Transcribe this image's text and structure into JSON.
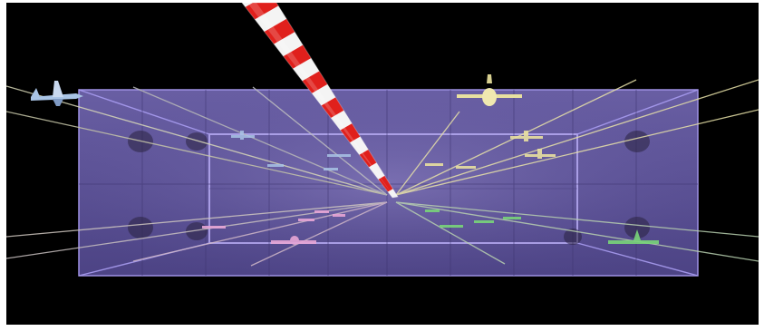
{
  "scene": {
    "colors": {
      "background": "#000000",
      "volume_fill": "#6b5fb0",
      "grid": "#8d7fd6",
      "pole_red": "#e0201c",
      "pole_white": "#f4f4f4",
      "plane_blue": "#a9c4e6",
      "plane_yellow": "#e8e0a0",
      "plane_pink": "#e7a6d6",
      "plane_green": "#79d57a"
    },
    "icons": [
      "airplane-icon"
    ]
  }
}
